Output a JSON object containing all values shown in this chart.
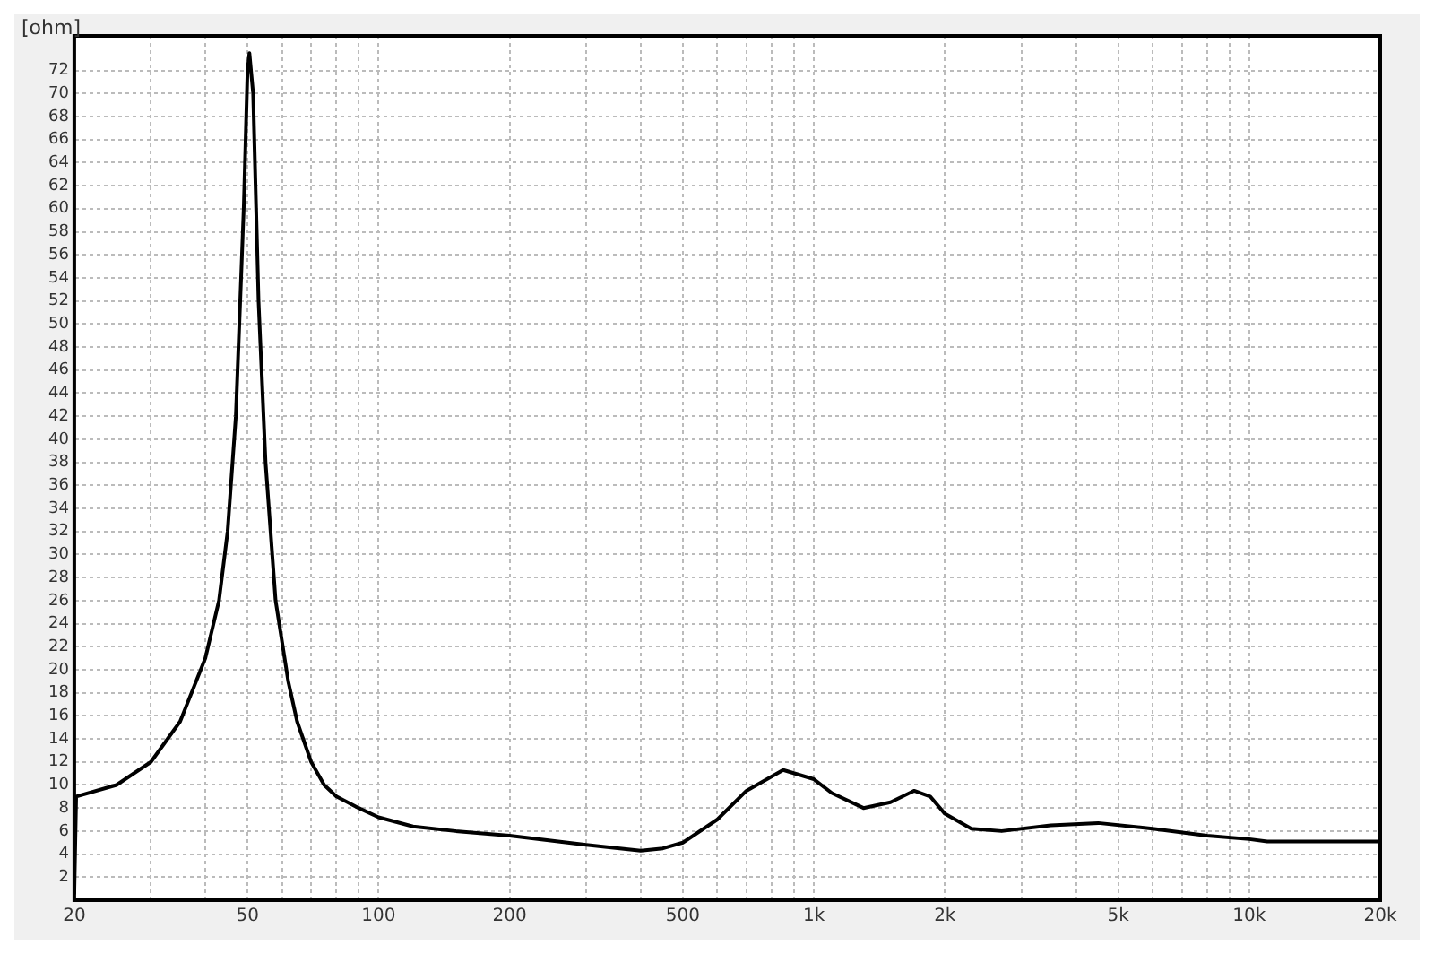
{
  "chart_data": {
    "type": "line",
    "ylabel": "[ohm]",
    "log": "x",
    "grid": true,
    "legend": false,
    "marker": "none",
    "line_style": "solid",
    "xlim": [
      20,
      20000
    ],
    "xticks": [
      20,
      {
        "value": 30,
        "label": null
      },
      {
        "value": 40,
        "label": null
      },
      50,
      {
        "value": 60,
        "label": null
      },
      {
        "value": 70,
        "label": null
      },
      {
        "value": 80,
        "label": null
      },
      {
        "value": 90,
        "label": null
      },
      100,
      200,
      {
        "value": 300,
        "label": null
      },
      {
        "value": 400,
        "label": null
      },
      500,
      {
        "value": 600,
        "label": null
      },
      {
        "value": 700,
        "label": null
      },
      {
        "value": 800,
        "label": null
      },
      {
        "value": 900,
        "label": null
      },
      {
        "value": 1000,
        "label": "1k"
      },
      {
        "value": 2000,
        "label": "2k"
      },
      {
        "value": 3000,
        "label": null
      },
      {
        "value": 4000,
        "label": null
      },
      {
        "value": 5000,
        "label": "5k"
      },
      {
        "value": 6000,
        "label": null
      },
      {
        "value": 7000,
        "label": null
      },
      {
        "value": 8000,
        "label": null
      },
      {
        "value": 9000,
        "label": null
      },
      {
        "value": 10000,
        "label": "10k"
      },
      {
        "value": 20000,
        "label": "20k"
      }
    ],
    "ylim": [
      0,
      75
    ],
    "yticks": [
      2,
      4,
      6,
      8,
      10,
      12,
      14,
      16,
      18,
      20,
      22,
      24,
      26,
      28,
      30,
      32,
      34,
      36,
      38,
      40,
      42,
      44,
      46,
      48,
      50,
      52,
      54,
      56,
      58,
      60,
      62,
      64,
      66,
      68,
      70,
      72
    ],
    "series": [
      {
        "color": "#000000",
        "x": [
          20,
          20.2,
          25,
          30,
          35,
          40,
          43,
          45,
          47,
          49,
          50,
          50.5,
          51.5,
          53,
          55,
          58,
          62,
          65,
          70,
          75,
          80,
          90,
          100,
          120,
          150,
          200,
          300,
          400,
          450,
          500,
          600,
          700,
          850,
          1000,
          1100,
          1300,
          1500,
          1700,
          1850,
          2000,
          2300,
          2700,
          3500,
          4500,
          6000,
          8000,
          10000,
          11000,
          20000
        ],
        "values": [
          0.5,
          9,
          10,
          12,
          15.5,
          21,
          26,
          32,
          42,
          60,
          72,
          73.5,
          70,
          52,
          38,
          26,
          19,
          15.5,
          12,
          10,
          9,
          8,
          7.2,
          6.4,
          6,
          5.6,
          4.8,
          4.3,
          4.5,
          5,
          7,
          9.5,
          11.3,
          10.5,
          9.3,
          8,
          8.5,
          9.5,
          9,
          7.5,
          6.2,
          6,
          6.5,
          6.7,
          6.2,
          5.6,
          5.3,
          5.1,
          5.1
        ]
      }
    ]
  }
}
